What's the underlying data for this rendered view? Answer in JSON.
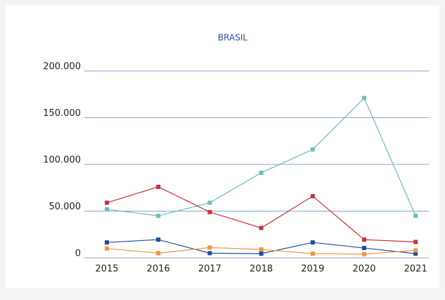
{
  "chart_data": {
    "type": "line",
    "title": "BRASIL",
    "categories": [
      "2015",
      "2016",
      "2017",
      "2018",
      "2019",
      "2020",
      "2021"
    ],
    "series": [
      {
        "color": "#6cbfb8",
        "values": [
          52000,
          45000,
          59000,
          91000,
          116000,
          171000,
          45000
        ]
      },
      {
        "color": "#c8323c",
        "values": [
          59000,
          76000,
          49000,
          32000,
          66000,
          19500,
          17000
        ]
      },
      {
        "color": "#1f4e9c",
        "values": [
          16500,
          19500,
          5000,
          4500,
          16500,
          10500,
          4500
        ]
      },
      {
        "color": "#f0963c",
        "values": [
          10000,
          5000,
          11000,
          9000,
          4500,
          4000,
          8000
        ]
      }
    ],
    "ylim": [
      0,
      200000
    ],
    "yticks": [
      0,
      {
        "value": 50000,
        "label": "50.000"
      },
      {
        "value": 100000,
        "label": "100.000"
      },
      {
        "value": 150000,
        "label": "150.000"
      },
      {
        "value": 200000,
        "label": "200.000"
      }
    ],
    "grid": true
  }
}
